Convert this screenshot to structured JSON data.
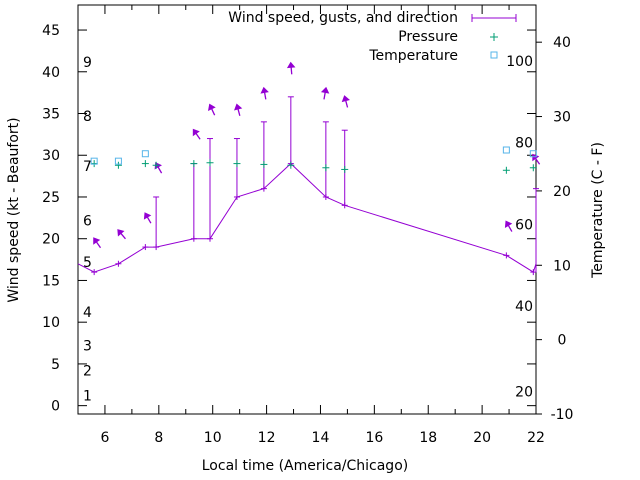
{
  "chart_data": {
    "type": "line",
    "xlabel": "Local time (America/Chicago)",
    "ylabel": "Wind speed (kt - Beaufort)",
    "y2label": "Temperature (C - F)",
    "xlim": [
      5,
      22
    ],
    "ylim": [
      -1,
      48
    ],
    "y2lim": [
      -10,
      45
    ],
    "xticks": [
      "6",
      "8",
      "10",
      "12",
      "14",
      "16",
      "18",
      "20",
      "22"
    ],
    "yticks": [
      "0",
      "5",
      "10",
      "15",
      "20",
      "25",
      "30",
      "35",
      "40",
      "45"
    ],
    "y2ticks": [
      "-10",
      "0",
      "10",
      "20",
      "30",
      "40"
    ],
    "grid": false,
    "legend_position": "top-right",
    "legend": {
      "wind": "Wind speed, gusts, and direction",
      "pressure": "Pressure",
      "temperature": "Temperature"
    },
    "beaufort_labels": [
      {
        "text": "1",
        "y": 1.2
      },
      {
        "text": "2",
        "y": 4.2
      },
      {
        "text": "3",
        "y": 7.2
      },
      {
        "text": "4",
        "y": 11.2
      },
      {
        "text": "5",
        "y": 17.2
      },
      {
        "text": "6",
        "y": 22.2
      },
      {
        "text": "7",
        "y": 28.7
      },
      {
        "text": "8",
        "y": 34.7
      },
      {
        "text": "9",
        "y": 41.2
      }
    ],
    "fahrenheit_labels": [
      {
        "text": "20",
        "y2": -7
      },
      {
        "text": "40",
        "y2": 4.5
      },
      {
        "text": "60",
        "y2": 15.5
      },
      {
        "text": "80",
        "y2": 26.5
      },
      {
        "text": "100",
        "y2": 37.5
      }
    ],
    "wind_x": [
      5.0,
      5.6,
      6.5,
      7.5,
      7.9,
      9.3,
      9.9,
      10.9,
      11.9,
      12.9,
      14.2,
      14.9,
      20.9,
      21.9,
      22.0
    ],
    "wind_speed": [
      17,
      16,
      17,
      19,
      19,
      20,
      20,
      25,
      26,
      29,
      25,
      24,
      18,
      16,
      17
    ],
    "gust_x": [
      7.9,
      9.3,
      9.9,
      10.9,
      11.9,
      12.9,
      14.2,
      14.9,
      22.0
    ],
    "gust_high": [
      25,
      29,
      32,
      32,
      34,
      37,
      34,
      33,
      26
    ],
    "gust_low": [
      19,
      20,
      20,
      25,
      26,
      29,
      25,
      24,
      16
    ],
    "arrow_x": [
      5.6,
      6.5,
      7.5,
      7.9,
      9.3,
      9.9,
      10.9,
      11.9,
      12.9,
      14.2,
      14.9,
      20.9,
      21.9
    ],
    "arrow_y": [
      20,
      21,
      23,
      29,
      33,
      36,
      36,
      38,
      41,
      38,
      37,
      22,
      30
    ],
    "arrow_dir": [
      -35,
      -40,
      -30,
      -30,
      -35,
      -25,
      -15,
      -10,
      -5,
      10,
      -15,
      -30,
      -35
    ],
    "pressure_x": [
      5.6,
      6.5,
      7.5,
      7.9,
      9.3,
      9.9,
      10.9,
      11.9,
      12.9,
      14.2,
      14.9,
      20.9,
      21.9
    ],
    "pressure_y": [
      29.0,
      28.8,
      29.0,
      28.8,
      29.0,
      29.1,
      29.0,
      28.9,
      28.8,
      28.5,
      28.3,
      28.2,
      28.5
    ],
    "temperature_x": [
      5.6,
      6.5,
      7.5,
      20.9,
      21.9
    ],
    "temperature_y2": [
      24,
      24,
      25,
      25.5,
      25
    ]
  }
}
